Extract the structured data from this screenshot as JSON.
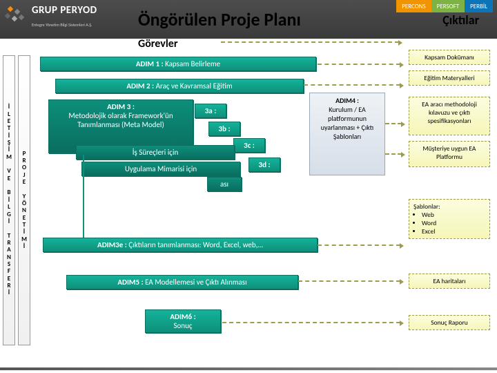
{
  "header": {
    "main_title": "Öngörülen Proje Planı",
    "right_title": "Çıktılar",
    "center_title": "Görevler",
    "logo_text": "GRUP PERYOD",
    "logo_sub": "Entegre Yönetim Bilgi Sistemleri A.Ş.",
    "chips": [
      "PERCONS",
      "PERSOFT",
      "PERBİL"
    ]
  },
  "vertical_labels": {
    "col1": "İLETİŞİM VE BİLGİ TRANSFERİ",
    "col2": "PROJE YÖNETİMİ"
  },
  "steps": {
    "s1": {
      "title": "ADIM 1 :",
      "text": "Kapsam Belirleme"
    },
    "s2": {
      "title": "ADIM 2 :",
      "text": "Araç ve Kavramsal Eğitim"
    },
    "s3": {
      "title": "ADIM 3 :",
      "text": "Metodolojik olarak Framework'ün Tanımlanması (Meta Model)"
    },
    "s3a": "3a :",
    "s3b": "3b :",
    "s3c": "3c :",
    "s3d": "3d :",
    "s3_sub1": "İş Süreçleri için",
    "s3_sub2": "Uygulama Mimarisi için",
    "s3_sub3": "ası",
    "s3e": {
      "title": "ADIM3e :",
      "text": "Çıktıların tanımlanması: Word, Excel, web,…"
    },
    "s5": {
      "title": "ADIM5 :",
      "text": "EA Modellemesi ve Çıktı Alınması"
    },
    "s6": {
      "title": "ADIM6 :",
      "text": "Sonuç"
    }
  },
  "side_step": {
    "title": "ADIM4 :",
    "text": "Kurulum / EA platformunun uyarlanması + Çıktı Şablonları"
  },
  "outputs": {
    "o1": "Kapsam Dokümanı",
    "o2": "Eğitim Materyalleri",
    "o3": "EA aracı methodoloji kılavuzu ve çıktı spesifikasyonları",
    "o4": "Müşteriye uygun EA Platformu",
    "o5_title": "Şablonlar:",
    "o5_items": [
      "Web",
      "Word",
      "Excel"
    ],
    "o6": "EA haritaları",
    "o7": "Sonuç Raporu"
  },
  "colors": {
    "task_fill": "#14b39a",
    "task_border": "#0b6e5f",
    "side_fill": "#e4ebf2",
    "out_fill": "#f8f9c8",
    "out_border": "#9c9c4a"
  }
}
